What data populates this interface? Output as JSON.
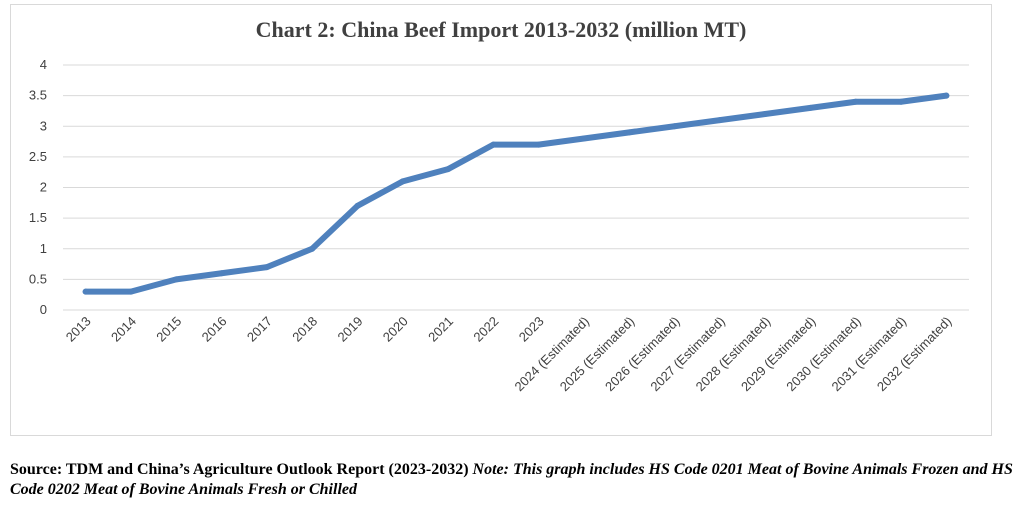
{
  "chart_data": {
    "type": "line",
    "title": "Chart 2: China Beef Import 2013-2032 (million MT)",
    "xlabel": "",
    "ylabel": "",
    "ylim": [
      0,
      4
    ],
    "yticks": [
      "0",
      "0.5",
      "1",
      "1.5",
      "2",
      "2.5",
      "3",
      "3.5",
      "4"
    ],
    "grid": true,
    "legend": "none",
    "line_color": "#4f81bd",
    "categories": [
      "2013",
      "2014",
      "2015",
      "2016",
      "2017",
      "2018",
      "2019",
      "2020",
      "2021",
      "2022",
      "2023",
      "2024 (Estimated)",
      "2025 (Estimated)",
      "2026 (Estimated)",
      "2027 (Estimated)",
      "2028 (Estimated)",
      "2029 (Estimated)",
      "2030 (Estimated)",
      "2031 (Estimated)",
      "2032 (Estimated)"
    ],
    "series": [
      {
        "values": [
          0.3,
          0.3,
          0.5,
          0.6,
          0.7,
          1.0,
          1.7,
          2.1,
          2.3,
          2.7,
          2.7,
          2.8,
          2.9,
          3.0,
          3.1,
          3.2,
          3.3,
          3.4,
          3.4,
          3.5
        ]
      }
    ]
  },
  "footnote": {
    "source": "Source: TDM and China’s Agriculture Outlook Report (2023-2032)",
    "note": "Note: This graph includes HS Code 0201 Meat of Bovine Animals Frozen and HS Code 0202 Meat of Bovine Animals Fresh or Chilled"
  }
}
